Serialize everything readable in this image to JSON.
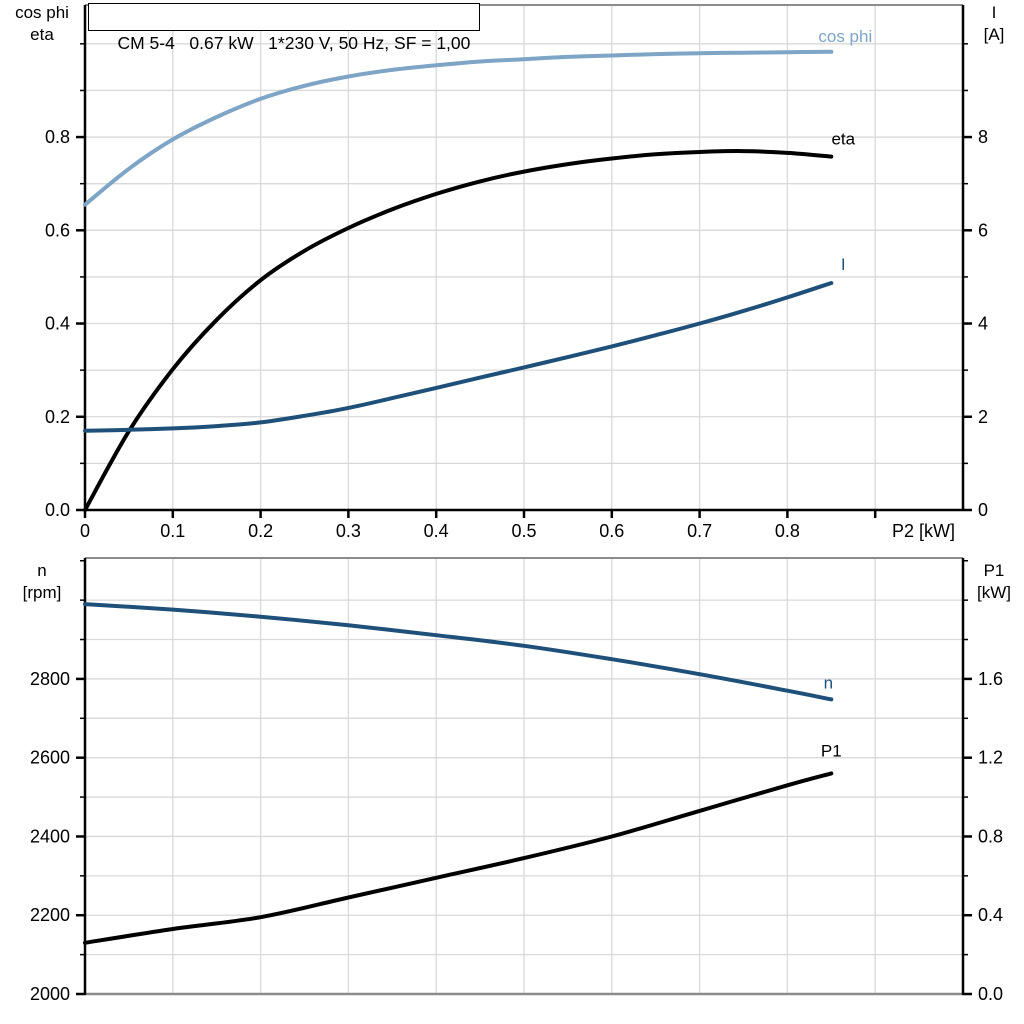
{
  "title": "CM 5-4   0.67 kW   1*230 V, 50 Hz, SF = 1,00",
  "corner_labels": {
    "top_left": [
      "cos phi",
      "eta"
    ],
    "top_right": [
      "I",
      "[A]"
    ],
    "bottom_left": [
      "n",
      "[rpm]"
    ],
    "bottom_right": [
      "P1",
      "[kW]"
    ]
  },
  "colors": {
    "cos_phi_curve": "#7EA4C6",
    "current_speed_curve": "#1F5079",
    "black_curve": "#000000",
    "gridline": "#D9D9D9",
    "axis": "#000000",
    "frame_gray": "#8C8C8C",
    "background": "#FFFFFF"
  },
  "chart_data": [
    {
      "type": "line",
      "id": "motor-electrical-chart",
      "title": "CM 5-4   0.67 kW   1*230 V, 50 Hz, SF = 1,00",
      "xlabel": "P2 [kW]",
      "xlim": [
        0,
        1.0
      ],
      "x_grid_step": 0.1,
      "xlabel_anchor_right": true,
      "x_ticks": {
        "values": [
          0,
          0.1,
          0.2,
          0.3,
          0.4,
          0.5,
          0.6,
          0.7,
          0.8,
          0.9
        ],
        "labels": [
          "0",
          "0.1",
          "0.2",
          "0.3",
          "0.4",
          "0.5",
          "0.6",
          "0.7",
          "0.8",
          ""
        ]
      },
      "left_axis": {
        "title": "cos phi / eta",
        "lim": [
          0,
          1.0833
        ],
        "tick_values": [
          0,
          0.2,
          0.4,
          0.6,
          0.8
        ],
        "tick_labels": [
          "0.0",
          "0.2",
          "0.4",
          "0.6",
          "0.8"
        ],
        "minor_step": 0.1,
        "grid_max": 1.0
      },
      "right_axis": {
        "title": "I [A]",
        "lim": [
          0,
          10.833
        ],
        "tick_values": [
          0,
          2,
          4,
          6,
          8
        ],
        "tick_labels": [
          "0",
          "2",
          "4",
          "6",
          "8"
        ],
        "minor_step": 1
      },
      "legend_position": "curve-end-labels",
      "grid": true,
      "series": [
        {
          "name": "cos phi",
          "axis": "left",
          "color": "#7EA4C6",
          "x": [
            0,
            0.05,
            0.1,
            0.15,
            0.2,
            0.25,
            0.3,
            0.35,
            0.4,
            0.45,
            0.5,
            0.55,
            0.6,
            0.65,
            0.7,
            0.75,
            0.8,
            0.85
          ],
          "y": [
            0.655,
            0.732,
            0.795,
            0.843,
            0.882,
            0.91,
            0.93,
            0.944,
            0.954,
            0.962,
            0.967,
            0.972,
            0.975,
            0.978,
            0.98,
            0.981,
            0.982,
            0.983
          ]
        },
        {
          "name": "eta",
          "axis": "left",
          "color": "#000000",
          "x": [
            0,
            0.05,
            0.1,
            0.15,
            0.2,
            0.25,
            0.3,
            0.35,
            0.4,
            0.45,
            0.5,
            0.55,
            0.6,
            0.65,
            0.7,
            0.75,
            0.8,
            0.85
          ],
          "y": [
            0,
            0.169,
            0.302,
            0.408,
            0.493,
            0.556,
            0.605,
            0.645,
            0.678,
            0.705,
            0.726,
            0.742,
            0.754,
            0.763,
            0.768,
            0.77,
            0.766,
            0.758
          ]
        },
        {
          "name": "I",
          "axis": "right",
          "color": "#1F5079",
          "x": [
            0,
            0.05,
            0.1,
            0.15,
            0.2,
            0.25,
            0.3,
            0.35,
            0.4,
            0.45,
            0.5,
            0.55,
            0.6,
            0.65,
            0.7,
            0.75,
            0.8,
            0.85
          ],
          "y": [
            1.7,
            1.72,
            1.75,
            1.8,
            1.88,
            2.02,
            2.19,
            2.4,
            2.62,
            2.84,
            3.06,
            3.28,
            3.51,
            3.75,
            4.0,
            4.27,
            4.56,
            4.87
          ]
        }
      ]
    },
    {
      "type": "line",
      "id": "motor-mechanical-chart",
      "xlabel": "",
      "xlim": [
        0,
        1.0
      ],
      "x_grid_step": 0.1,
      "x_ticks": null,
      "left_axis": {
        "title": "n [rpm]",
        "lim": [
          2000,
          3107
        ],
        "tick_values": [
          2000,
          2200,
          2400,
          2600,
          2800
        ],
        "tick_labels": [
          "2000",
          "2200",
          "2400",
          "2600",
          "2800"
        ],
        "minor_step": 100,
        "grid_max": 3000
      },
      "right_axis": {
        "title": "P1 [kW]",
        "lim": [
          0,
          2.214
        ],
        "tick_values": [
          0,
          0.4,
          0.8,
          1.2,
          1.6
        ],
        "tick_labels": [
          "0.0",
          "0.4",
          "0.8",
          "1.2",
          "1.6"
        ],
        "minor_step": 0.2
      },
      "legend_position": "curve-end-labels",
      "grid": true,
      "series": [
        {
          "name": "n",
          "axis": "left",
          "color": "#1F5079",
          "x": [
            0,
            0.1,
            0.2,
            0.3,
            0.4,
            0.5,
            0.6,
            0.7,
            0.8,
            0.85
          ],
          "y": [
            2990,
            2976,
            2958,
            2936,
            2911,
            2884,
            2850,
            2812,
            2770,
            2748
          ]
        },
        {
          "name": "P1",
          "axis": "left_as_power",
          "color": "#000000",
          "x": [
            0,
            0.1,
            0.2,
            0.3,
            0.4,
            0.5,
            0.6,
            0.7,
            0.8,
            0.85
          ],
          "y": [
            0.26,
            0.33,
            0.39,
            0.49,
            0.59,
            0.69,
            0.8,
            0.93,
            1.06,
            1.12
          ]
        }
      ]
    }
  ]
}
